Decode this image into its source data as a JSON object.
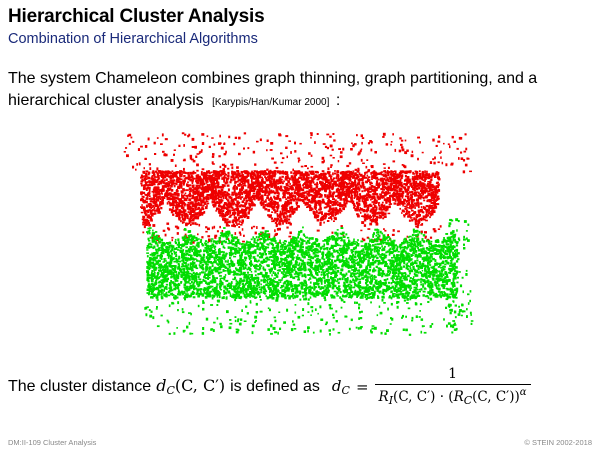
{
  "slide": {
    "title": "Hierarchical Cluster Analysis",
    "subtitle": "Combination of Hierarchical Algorithms"
  },
  "intro": {
    "text": "The system Chameleon combines graph thinning, graph partitioning, and a hierarchical cluster analysis",
    "citation": "[Karypis/Han/Kumar 2000]",
    "suffix": ":"
  },
  "distance": {
    "lead": "The cluster distance",
    "inline_symbol": "d",
    "inline_sub": "C",
    "inline_args": "(C, C′)",
    "tail": "is defined as",
    "lhs_symbol": "d",
    "lhs_sub": "C",
    "equals": "=",
    "numerator": "1",
    "denominator": {
      "ri": "R",
      "ri_sub": "I",
      "ri_args": "(C, C′)",
      "dot": " · ",
      "rc_open": "(",
      "rc": "R",
      "rc_sub": "C",
      "rc_args": "(C, C′))",
      "exponent": "α"
    }
  },
  "footer": {
    "left": "DM:II-109   Cluster Analysis",
    "right": "© STEIN 2002-2018"
  },
  "colors": {
    "red_cluster": "#ee0000",
    "green_cluster": "#00dd00"
  }
}
